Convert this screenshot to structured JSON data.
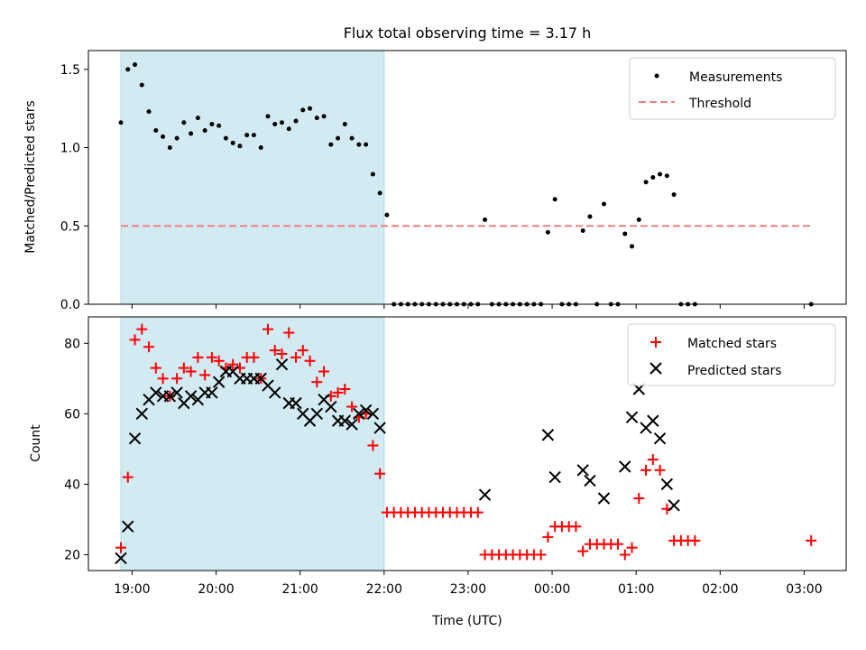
{
  "title": "Flux total observing time = 3.17 h",
  "xlabel": "Time (UTC)",
  "x_ticks": [
    "19:00",
    "20:00",
    "21:00",
    "22:00",
    "23:00",
    "00:00",
    "01:00",
    "02:00",
    "03:00"
  ],
  "colors": {
    "shade": "#add8e6",
    "threshold": "#f08080",
    "matched": "#ff0000",
    "predicted": "#000000",
    "measurement": "#000000"
  },
  "chart_data": [
    {
      "type": "scatter",
      "ylabel": "Matched/Predicted stars",
      "y_ticks": [
        "0.0",
        "0.5",
        "1.0",
        "1.5"
      ],
      "ylim": [
        0,
        1.62
      ],
      "x_unit": "hours after 18:00 UTC",
      "xlim": [
        0.48,
        9.5
      ],
      "shaded_interval": [
        "18:52",
        "22:00"
      ],
      "threshold": {
        "y": 0.5,
        "x_range": [
          "18:52",
          "03:05"
        ]
      },
      "legend": {
        "position": "top-right",
        "entries": [
          "Measurements",
          "Threshold"
        ]
      },
      "series": [
        {
          "name": "Measurements",
          "x": [
            "18:52",
            "18:57",
            "19:02",
            "19:07",
            "19:12",
            "19:17",
            "19:22",
            "19:27",
            "19:32",
            "19:37",
            "19:42",
            "19:47",
            "19:52",
            "19:57",
            "20:02",
            "20:07",
            "20:12",
            "20:17",
            "20:22",
            "20:27",
            "20:32",
            "20:37",
            "20:42",
            "20:47",
            "20:52",
            "20:57",
            "21:02",
            "21:07",
            "21:12",
            "21:17",
            "21:22",
            "21:27",
            "21:32",
            "21:37",
            "21:42",
            "21:47",
            "21:52",
            "21:57",
            "22:02",
            "22:07",
            "22:12",
            "22:17",
            "22:22",
            "22:27",
            "22:32",
            "22:37",
            "22:42",
            "22:47",
            "22:52",
            "22:57",
            "23:02",
            "23:07",
            "23:12",
            "23:17",
            "23:22",
            "23:27",
            "23:32",
            "23:37",
            "23:42",
            "23:47",
            "23:52",
            "23:57",
            "00:02",
            "00:07",
            "00:12",
            "00:17",
            "00:22",
            "00:27",
            "00:32",
            "00:37",
            "00:42",
            "00:47",
            "00:52",
            "00:57",
            "01:02",
            "01:07",
            "01:12",
            "01:17",
            "01:22",
            "01:27",
            "01:32",
            "01:37",
            "01:42",
            "03:05"
          ],
          "y": [
            1.16,
            1.5,
            1.53,
            1.4,
            1.23,
            1.11,
            1.07,
            1.0,
            1.06,
            1.16,
            1.09,
            1.19,
            1.11,
            1.15,
            1.14,
            1.06,
            1.03,
            1.01,
            1.08,
            1.08,
            1.0,
            1.2,
            1.15,
            1.16,
            1.12,
            1.17,
            1.24,
            1.25,
            1.19,
            1.2,
            1.02,
            1.06,
            1.15,
            1.06,
            1.02,
            1.02,
            0.83,
            0.71,
            0.57,
            0,
            0,
            0,
            0,
            0,
            0,
            0,
            0,
            0,
            0,
            0,
            0,
            0,
            0.54,
            0,
            0,
            0,
            0,
            0,
            0,
            0,
            0,
            0.46,
            0.67,
            0,
            0,
            0,
            0.47,
            0.56,
            0,
            0.64,
            0,
            0,
            0.45,
            0.37,
            0.54,
            0.78,
            0.81,
            0.83,
            0.82,
            0.7,
            0,
            0,
            0,
            0
          ]
        }
      ]
    },
    {
      "type": "scatter",
      "ylabel": "Count",
      "y_ticks": [
        "20",
        "40",
        "60",
        "80"
      ],
      "ylim": [
        15.5,
        87.5
      ],
      "x_unit": "hours after 18:00 UTC",
      "xlim": [
        0.48,
        9.5
      ],
      "shaded_interval": [
        "18:52",
        "22:00"
      ],
      "legend": {
        "position": "top-right",
        "entries": [
          "Matched stars",
          "Predicted stars"
        ]
      },
      "series": [
        {
          "name": "Matched stars",
          "x": [
            "18:52",
            "18:57",
            "19:02",
            "19:07",
            "19:12",
            "19:17",
            "19:22",
            "19:27",
            "19:32",
            "19:37",
            "19:42",
            "19:47",
            "19:52",
            "19:57",
            "20:02",
            "20:07",
            "20:12",
            "20:17",
            "20:22",
            "20:27",
            "20:32",
            "20:37",
            "20:42",
            "20:47",
            "20:52",
            "20:57",
            "21:02",
            "21:07",
            "21:12",
            "21:17",
            "21:22",
            "21:27",
            "21:32",
            "21:37",
            "21:42",
            "21:47",
            "21:52",
            "21:57",
            "22:02",
            "22:07",
            "22:12",
            "22:17",
            "22:22",
            "22:27",
            "22:32",
            "22:37",
            "22:42",
            "22:47",
            "22:52",
            "22:57",
            "23:02",
            "23:07",
            "23:12",
            "23:17",
            "23:22",
            "23:27",
            "23:32",
            "23:37",
            "23:42",
            "23:47",
            "23:52",
            "23:57",
            "00:02",
            "00:07",
            "00:12",
            "00:17",
            "00:22",
            "00:27",
            "00:32",
            "00:37",
            "00:42",
            "00:47",
            "00:52",
            "00:57",
            "01:02",
            "01:07",
            "01:12",
            "01:17",
            "01:22",
            "01:27",
            "01:32",
            "01:37",
            "01:42",
            "03:05"
          ],
          "y": [
            22,
            42,
            81,
            84,
            79,
            73,
            70,
            65,
            70,
            73,
            72,
            76,
            71,
            76,
            75,
            73,
            74,
            73,
            76,
            76,
            70,
            84,
            78,
            77,
            83,
            76,
            78,
            75,
            69,
            72,
            65,
            66,
            67,
            62,
            59,
            60,
            51,
            43,
            32,
            32,
            32,
            32,
            32,
            32,
            32,
            32,
            32,
            32,
            32,
            32,
            32,
            32,
            20,
            20,
            20,
            20,
            20,
            20,
            20,
            20,
            20,
            25,
            28,
            28,
            28,
            28,
            21,
            23,
            23,
            23,
            23,
            23,
            20,
            22,
            36,
            44,
            47,
            44,
            33,
            24,
            24,
            24,
            24,
            24
          ]
        },
        {
          "name": "Predicted stars",
          "x": [
            "18:52",
            "18:57",
            "19:02",
            "19:07",
            "19:12",
            "19:17",
            "19:22",
            "19:27",
            "19:32",
            "19:37",
            "19:42",
            "19:47",
            "19:52",
            "19:57",
            "20:02",
            "20:07",
            "20:12",
            "20:17",
            "20:22",
            "20:27",
            "20:32",
            "20:37",
            "20:42",
            "20:47",
            "20:52",
            "20:57",
            "21:02",
            "21:07",
            "21:12",
            "21:17",
            "21:22",
            "21:27",
            "21:32",
            "21:37",
            "21:42",
            "21:47",
            "21:52",
            "21:57",
            "23:12",
            "23:57",
            "00:02",
            "00:22",
            "00:27",
            "00:37",
            "00:52",
            "00:57",
            "01:02",
            "01:07",
            "01:12",
            "01:17",
            "01:22",
            "01:27"
          ],
          "y": [
            19,
            28,
            53,
            60,
            64,
            66,
            65,
            65,
            66,
            63,
            65,
            64,
            66,
            66,
            69,
            72,
            72,
            70,
            70,
            70,
            70,
            68,
            66,
            74,
            63,
            63,
            60,
            58,
            60,
            64,
            62,
            58,
            58,
            57,
            60,
            61,
            60,
            56,
            37,
            54,
            42,
            44,
            41,
            36,
            45,
            59,
            67,
            56,
            58,
            53,
            40,
            34
          ]
        }
      ]
    }
  ]
}
